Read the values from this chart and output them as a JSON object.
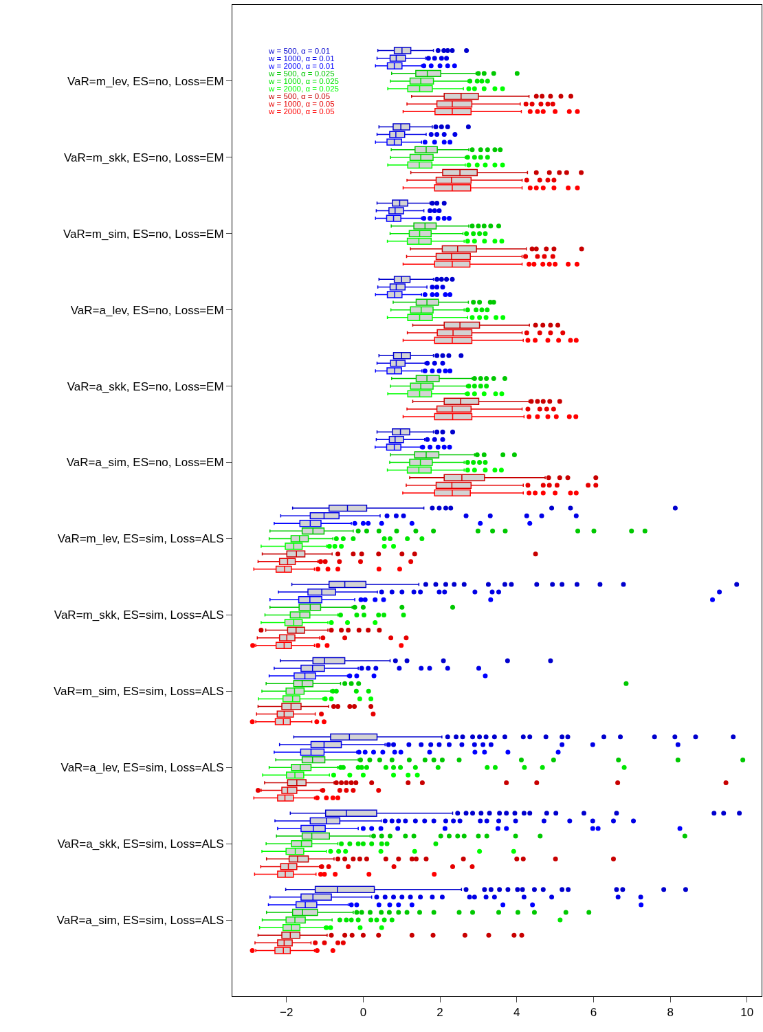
{
  "chart_data": {
    "type": "box",
    "orientation": "horizontal",
    "legend": "top left",
    "marker": "circle",
    "categories": [
      "VaR=m_lev, ES=no, Loss=EM",
      "VaR=m_skk, ES=no, Loss=EM",
      "VaR=m_sim, ES=no, Loss=EM",
      "VaR=a_lev, ES=no, Loss=EM",
      "VaR=a_skk, ES=no, Loss=EM",
      "VaR=a_sim, ES=no, Loss=EM",
      "VaR=m_lev, ES=sim, Loss=ALS",
      "VaR=m_skk, ES=sim, Loss=ALS",
      "VaR=m_sim, ES=sim, Loss=ALS",
      "VaR=a_lev, ES=sim, Loss=ALS",
      "VaR=a_skk, ES=sim, Loss=ALS",
      "VaR=a_sim, ES=sim, Loss=ALS"
    ],
    "xlim": [
      -3.41,
      10.38
    ],
    "xticks": [
      {
        "value": -2,
        "label": "−2"
      },
      0,
      2,
      4,
      6,
      8,
      10
    ],
    "series": [
      {
        "name": "w = 500, α = 0.01",
        "color": "#0000cd",
        "boxes": [
          {
            "low": 0.38,
            "q1": 0.81,
            "median": 1.01,
            "q3": 1.24,
            "high": 1.83,
            "outliers": [
              1.95,
              2.1,
              2.2,
              2.32,
              2.69
            ]
          },
          {
            "low": 0.41,
            "q1": 0.78,
            "median": 0.98,
            "q3": 1.21,
            "high": 1.8,
            "outliers": [
              1.89,
              2.04,
              2.2,
              2.74
            ]
          },
          {
            "low": 0.36,
            "q1": 0.76,
            "median": 0.95,
            "q3": 1.16,
            "high": 1.74,
            "outliers": [
              1.8,
              1.92,
              2.11
            ]
          },
          {
            "low": 0.41,
            "q1": 0.81,
            "median": 1.0,
            "q3": 1.22,
            "high": 1.83,
            "outliers": [
              1.92,
              2.04,
              2.17,
              2.32
            ]
          },
          {
            "low": 0.41,
            "q1": 0.79,
            "median": 1.0,
            "q3": 1.23,
            "high": 1.83,
            "outliers": [
              1.92,
              2.07,
              2.23,
              2.55
            ]
          },
          {
            "low": 0.36,
            "q1": 0.76,
            "median": 0.97,
            "q3": 1.21,
            "high": 1.83,
            "outliers": [
              1.92,
              2.07,
              2.33
            ]
          },
          {
            "low": -1.84,
            "q1": -0.89,
            "median": -0.41,
            "q3": 0.09,
            "high": 1.58,
            "outliers": [
              1.8,
              1.98,
              2.15,
              2.28,
              4.91,
              5.4,
              8.13
            ]
          },
          {
            "low": -1.86,
            "q1": -0.89,
            "median": -0.48,
            "q3": 0.07,
            "high": 1.45,
            "outliers": [
              1.63,
              1.89,
              2.15,
              2.37,
              2.63,
              3.26,
              3.69,
              3.86,
              4.52,
              4.93,
              5.18,
              5.57,
              6.17,
              6.78,
              9.73
            ]
          },
          {
            "low": -2.16,
            "q1": -1.31,
            "median": -1.01,
            "q3": -0.48,
            "high": 0.7,
            "outliers": [
              0.84,
              1.14,
              2.09,
              3.76,
              4.88
            ]
          },
          {
            "low": -1.81,
            "q1": -0.85,
            "median": -0.36,
            "q3": 0.36,
            "high": 2.05,
            "outliers": [
              2.2,
              2.42,
              2.59,
              2.85,
              3.03,
              3.2,
              3.42,
              3.69,
              4.17,
              4.34,
              4.76,
              5.18,
              5.33,
              6.27,
              6.7,
              7.59,
              8.12,
              8.66,
              9.64
            ]
          },
          {
            "low": -1.9,
            "q1": -0.98,
            "median": -0.44,
            "q3": 0.35,
            "high": 2.33,
            "outliers": [
              2.46,
              2.68,
              2.85,
              3.07,
              3.29,
              3.55,
              3.73,
              3.95,
              4.19,
              4.34,
              4.78,
              5.02,
              5.75,
              6.6,
              9.14,
              9.39,
              9.8
            ]
          },
          {
            "low": -2.02,
            "q1": -1.25,
            "median": -0.67,
            "q3": 0.29,
            "high": 2.56,
            "outliers": [
              2.68,
              3.16,
              3.33,
              3.55,
              3.77,
              4.02,
              4.15,
              4.46,
              4.69,
              5.18,
              5.34,
              6.6,
              6.76,
              7.83,
              8.4
            ]
          }
        ]
      },
      {
        "name": "w = 1000, α = 0.01",
        "color": "#0000e6",
        "boxes": [
          {
            "low": 0.36,
            "q1": 0.7,
            "median": 0.86,
            "q3": 1.1,
            "high": 1.62,
            "outliers": [
              1.7,
              1.86,
              2.04,
              2.17
            ]
          },
          {
            "low": 0.36,
            "q1": 0.69,
            "median": 0.85,
            "q3": 1.08,
            "high": 1.64,
            "outliers": [
              1.77,
              1.92,
              2.11,
              2.39
            ]
          },
          {
            "low": 0.34,
            "q1": 0.67,
            "median": 0.83,
            "q3": 1.05,
            "high": 1.58,
            "outliers": [
              1.74,
              1.86,
              1.98
            ]
          },
          {
            "low": 0.38,
            "q1": 0.7,
            "median": 0.86,
            "q3": 1.09,
            "high": 1.66,
            "outliers": [
              1.8,
              1.92,
              2.07
            ]
          },
          {
            "low": 0.36,
            "q1": 0.71,
            "median": 0.86,
            "q3": 1.09,
            "high": 1.61,
            "outliers": [
              1.67,
              1.86,
              2.07
            ]
          },
          {
            "low": 0.34,
            "q1": 0.68,
            "median": 0.83,
            "q3": 1.05,
            "high": 1.6,
            "outliers": [
              1.67,
              1.86,
              2.07
            ]
          },
          {
            "low": -2.15,
            "q1": -1.38,
            "median": -1.02,
            "q3": -0.63,
            "high": 0.44,
            "outliers": [
              0.62,
              0.86,
              1.05,
              2.68,
              3.31,
              4.26,
              4.65,
              5.55
            ]
          },
          {
            "low": -2.21,
            "q1": -1.44,
            "median": -1.08,
            "q3": -0.72,
            "high": 0.37,
            "outliers": [
              0.48,
              0.75,
              1.01,
              1.32,
              1.49,
              1.98,
              2.12,
              2.91,
              3.36,
              3.53,
              9.28
            ]
          },
          {
            "low": -2.32,
            "q1": -1.62,
            "median": -1.32,
            "q3": -1.01,
            "high": -0.13,
            "outliers": [
              -0.04,
              0.13,
              0.33,
              0.94,
              1.51,
              1.73,
              2.2,
              3.01
            ]
          },
          {
            "low": -2.18,
            "q1": -1.36,
            "median": -1.02,
            "q3": -0.57,
            "high": 0.57,
            "outliers": [
              0.66,
              0.79,
              1.19,
              1.51,
              1.76,
              1.98,
              2.24,
              2.57,
              2.9,
              3.12,
              3.33,
              5.18,
              5.98,
              8.2
            ]
          },
          {
            "low": -2.3,
            "q1": -1.38,
            "median": -0.96,
            "q3": -0.61,
            "high": 0.47,
            "outliers": [
              0.57,
              0.75,
              0.92,
              1.1,
              1.36,
              1.6,
              1.84,
              2.15,
              2.35,
              2.52,
              3.05,
              3.22,
              3.53,
              3.97,
              4.71,
              5.38,
              5.98,
              6.52,
              7.04
            ]
          },
          {
            "low": -2.43,
            "q1": -1.62,
            "median": -1.31,
            "q3": -0.83,
            "high": 0.22,
            "outliers": [
              0.35,
              0.57,
              0.79,
              1.01,
              1.23,
              1.49,
              1.8,
              2.06,
              2.77,
              2.9,
              3.2,
              3.42,
              4.19,
              4.91,
              6.64,
              7.23
            ]
          }
        ]
      },
      {
        "name": "w = 2000, α = 0.01",
        "color": "#0000ff",
        "boxes": [
          {
            "low": 0.32,
            "q1": 0.63,
            "median": 0.81,
            "q3": 1.01,
            "high": 1.52,
            "outliers": [
              1.58,
              1.77,
              2.0,
              2.2,
              2.38
            ]
          },
          {
            "low": 0.32,
            "q1": 0.62,
            "median": 0.81,
            "q3": 1.0,
            "high": 1.52,
            "outliers": [
              1.61,
              1.86,
              2.11,
              2.26
            ]
          },
          {
            "low": 0.32,
            "q1": 0.61,
            "median": 0.79,
            "q3": 0.98,
            "high": 1.52,
            "outliers": [
              1.58,
              1.74,
              1.95,
              2.11,
              2.24
            ]
          },
          {
            "low": 0.32,
            "q1": 0.63,
            "median": 0.82,
            "q3": 1.01,
            "high": 1.52,
            "outliers": [
              1.61,
              1.8,
              1.92,
              2.14,
              2.26
            ]
          },
          {
            "low": 0.32,
            "q1": 0.62,
            "median": 0.82,
            "q3": 1.0,
            "high": 1.53,
            "outliers": [
              1.61,
              1.8,
              1.98,
              2.14,
              2.26
            ]
          },
          {
            "low": 0.31,
            "q1": 0.61,
            "median": 0.81,
            "q3": 0.98,
            "high": 1.49,
            "outliers": [
              1.55,
              1.74,
              1.95,
              2.11,
              2.25
            ]
          },
          {
            "low": -2.32,
            "q1": -1.65,
            "median": -1.38,
            "q3": -1.1,
            "high": -0.31,
            "outliers": [
              -0.22,
              0.0,
              0.13,
              0.48,
              1.27,
              3.05,
              4.34
            ]
          },
          {
            "low": -2.43,
            "q1": -1.68,
            "median": -1.39,
            "q3": -1.08,
            "high": -0.22,
            "outliers": [
              -0.06,
              0.05,
              0.31,
              0.53,
              3.32,
              9.1
            ]
          },
          {
            "low": -2.45,
            "q1": -1.8,
            "median": -1.52,
            "q3": -1.24,
            "high": -0.41,
            "outliers": [
              -0.35,
              -0.17,
              0.28,
              3.18
            ]
          },
          {
            "low": -2.32,
            "q1": -1.63,
            "median": -1.36,
            "q3": -1.02,
            "high": -0.17,
            "outliers": [
              -0.11,
              0.05,
              0.27,
              0.51,
              0.82,
              0.98,
              1.73,
              2.91,
              3.16,
              3.77,
              5.08
            ]
          },
          {
            "low": -2.23,
            "q1": -1.62,
            "median": -1.3,
            "q3": -0.99,
            "high": -0.13,
            "outliers": [
              0.0,
              0.22,
              0.46,
              0.9,
              2.13,
              3.51,
              3.73,
              5.98,
              6.12,
              8.25
            ]
          },
          {
            "low": -2.47,
            "q1": -1.75,
            "median": -1.51,
            "q3": -1.21,
            "high": -0.39,
            "outliers": [
              -0.31,
              -0.17,
              0.41,
              0.69,
              0.92,
              1.27,
              3.64,
              4.41,
              7.24
            ]
          }
        ]
      },
      {
        "name": "w = 500, α = 0.025",
        "color": "#00c800",
        "boxes": [
          {
            "low": 0.74,
            "q1": 1.37,
            "median": 1.67,
            "q3": 2.02,
            "high": 2.94,
            "outliers": [
              3.0,
              3.15,
              3.4,
              4.01
            ]
          },
          {
            "low": 0.73,
            "q1": 1.35,
            "median": 1.64,
            "q3": 1.93,
            "high": 2.75,
            "outliers": [
              2.84,
              3.06,
              3.24,
              3.43,
              3.57
            ]
          },
          {
            "low": 0.73,
            "q1": 1.32,
            "median": 1.61,
            "q3": 1.9,
            "high": 2.75,
            "outliers": [
              2.84,
              3.0,
              3.15,
              3.32,
              3.53
            ]
          },
          {
            "low": 0.78,
            "q1": 1.38,
            "median": 1.66,
            "q3": 1.96,
            "high": 2.74,
            "outliers": [
              2.87,
              3.03,
              3.31,
              3.4
            ]
          },
          {
            "low": 0.74,
            "q1": 1.38,
            "median": 1.66,
            "q3": 1.98,
            "high": 2.84,
            "outliers": [
              2.9,
              3.06,
              3.21,
              3.4,
              3.69
            ]
          },
          {
            "low": 0.71,
            "q1": 1.34,
            "median": 1.64,
            "q3": 1.97,
            "high": 2.9,
            "outliers": [
              2.97,
              3.15,
              3.64,
              3.94
            ]
          },
          {
            "low": -2.43,
            "q1": -1.59,
            "median": -1.31,
            "q3": -1.02,
            "high": -0.26,
            "outliers": [
              -0.13,
              0.09,
              0.41,
              0.87,
              1.37,
              1.83,
              2.99,
              3.37,
              3.7,
              5.59,
              6.01,
              6.99,
              7.34
            ]
          },
          {
            "low": -2.43,
            "q1": -1.67,
            "median": -1.38,
            "q3": -1.11,
            "high": -0.29,
            "outliers": [
              -0.22,
              0.0,
              1.01,
              2.33
            ]
          },
          {
            "low": -2.53,
            "q1": -1.81,
            "median": -1.59,
            "q3": -1.31,
            "high": -0.59,
            "outliers": [
              -0.48,
              -0.31,
              -0.12,
              6.85
            ]
          },
          {
            "low": -2.28,
            "q1": -1.59,
            "median": -1.32,
            "q3": -1.0,
            "high": -0.13,
            "outliers": [
              -0.07,
              0.17,
              0.43,
              0.75,
              1.2,
              1.61,
              1.84,
              2.06,
              2.5,
              4.12,
              4.96,
              6.65,
              8.2,
              9.89
            ]
          },
          {
            "low": -2.26,
            "q1": -1.59,
            "median": -1.34,
            "q3": -0.88,
            "high": 0.18,
            "outliers": [
              0.27,
              0.48,
              0.7,
              1.1,
              1.32,
              2.02,
              2.24,
              2.46,
              2.63,
              3.0,
              3.22,
              3.97,
              4.61,
              8.38
            ]
          },
          {
            "low": -2.52,
            "q1": -1.84,
            "median": -1.58,
            "q3": -1.19,
            "high": -0.26,
            "outliers": [
              -0.17,
              -0.04,
              0.18,
              0.47,
              0.68,
              0.92,
              1.14,
              1.47,
              1.84,
              2.5,
              2.85,
              3.53,
              4.03,
              4.46,
              5.28,
              5.88
            ]
          }
        ]
      },
      {
        "name": "w = 1000, α = 0.025",
        "color": "#00e600",
        "boxes": [
          {
            "low": 0.71,
            "q1": 1.22,
            "median": 1.5,
            "q3": 1.83,
            "high": 2.73,
            "outliers": [
              2.78,
              2.97,
              3.09,
              3.24
            ]
          },
          {
            "low": 0.71,
            "q1": 1.22,
            "median": 1.5,
            "q3": 1.82,
            "high": 2.66,
            "outliers": [
              2.72,
              2.9,
              3.06,
              3.24
            ]
          },
          {
            "low": 0.7,
            "q1": 1.2,
            "median": 1.47,
            "q3": 1.77,
            "high": 2.6,
            "outliers": [
              2.69,
              2.87,
              3.03,
              3.18
            ]
          },
          {
            "low": 0.72,
            "q1": 1.23,
            "median": 1.51,
            "q3": 1.82,
            "high": 2.63,
            "outliers": [
              2.72,
              2.94,
              3.09,
              3.23
            ]
          },
          {
            "low": 0.71,
            "q1": 1.23,
            "median": 1.5,
            "q3": 1.82,
            "high": 2.69,
            "outliers": [
              2.75,
              2.9,
              3.06,
              3.21
            ]
          },
          {
            "low": 0.69,
            "q1": 1.21,
            "median": 1.49,
            "q3": 1.8,
            "high": 2.63,
            "outliers": [
              2.72,
              2.87,
              3.03,
              3.18
            ]
          },
          {
            "low": -2.45,
            "q1": -1.88,
            "median": -1.66,
            "q3": -1.43,
            "high": -0.79,
            "outliers": [
              -0.7,
              -0.52,
              -0.26,
              0.55,
              0.7,
              1.15,
              1.53
            ]
          },
          {
            "low": -2.56,
            "q1": -1.9,
            "median": -1.65,
            "q3": -1.39,
            "high": -0.66,
            "outliers": [
              -0.59,
              -0.17,
              0.02,
              0.4,
              0.54,
              1.05
            ]
          },
          {
            "low": -2.64,
            "q1": -2.01,
            "median": -1.79,
            "q3": -1.54,
            "high": -0.85,
            "outliers": [
              -0.79,
              -0.7,
              -0.18,
              0.14
            ]
          },
          {
            "low": -2.45,
            "q1": -1.87,
            "median": -1.64,
            "q3": -1.36,
            "high": -0.67,
            "outliers": [
              -0.59,
              -0.52,
              -0.13,
              -0.04,
              0.09,
              0.59,
              0.79,
              0.97,
              1.36,
              1.95,
              3.23,
              3.44,
              4.2,
              4.67,
              6.8
            ]
          },
          {
            "low": -2.53,
            "q1": -1.87,
            "median": -1.61,
            "q3": -1.34,
            "high": -0.66,
            "outliers": [
              -0.57,
              -0.35,
              -0.13,
              0.0,
              0.22,
              0.48,
              0.62,
              1.89
            ]
          },
          {
            "low": -2.63,
            "q1": -2.01,
            "median": -1.78,
            "q3": -1.51,
            "high": -0.81,
            "outliers": [
              -0.61,
              -0.44,
              -0.31,
              -0.13,
              0.2,
              0.35,
              0.55,
              0.75,
              5.13
            ]
          }
        ]
      },
      {
        "name": "w = 2000, α = 0.025",
        "color": "#00ff00",
        "boxes": [
          {
            "low": 0.64,
            "q1": 1.16,
            "median": 1.47,
            "q3": 1.8,
            "high": 2.61,
            "outliers": [
              2.75,
              2.9,
              3.15,
              3.43,
              3.63
            ]
          },
          {
            "low": 0.64,
            "q1": 1.16,
            "median": 1.46,
            "q3": 1.79,
            "high": 2.66,
            "outliers": [
              2.75,
              2.97,
              3.18,
              3.43,
              3.63
            ]
          },
          {
            "low": 0.63,
            "q1": 1.15,
            "median": 1.45,
            "q3": 1.77,
            "high": 2.63,
            "outliers": [
              2.72,
              2.9,
              3.16,
              3.43,
              3.61
            ]
          },
          {
            "low": 0.63,
            "q1": 1.16,
            "median": 1.47,
            "q3": 1.8,
            "high": 2.72,
            "outliers": [
              2.84,
              3.03,
              3.2,
              3.46,
              3.64
            ]
          },
          {
            "low": 0.64,
            "q1": 1.16,
            "median": 1.47,
            "q3": 1.78,
            "high": 2.66,
            "outliers": [
              2.72,
              2.9,
              3.15,
              3.45,
              3.61
            ]
          },
          {
            "low": 0.63,
            "q1": 1.15,
            "median": 1.45,
            "q3": 1.77,
            "high": 2.63,
            "outliers": [
              2.72,
              2.9,
              3.18,
              3.43,
              3.6
            ]
          },
          {
            "low": -2.66,
            "q1": -2.03,
            "median": -1.81,
            "q3": -1.59,
            "high": -0.96,
            "outliers": [
              -0.88,
              -0.74,
              -0.57,
              0.55,
              0.79
            ]
          },
          {
            "low": -2.66,
            "q1": -2.04,
            "median": -1.81,
            "q3": -1.59,
            "high": -0.92,
            "outliers": [
              -0.83,
              -0.41,
              0.31
            ]
          },
          {
            "low": -2.73,
            "q1": -2.09,
            "median": -1.84,
            "q3": -1.65,
            "high": -1.05,
            "outliers": [
              -0.99,
              -0.83,
              -0.09,
              0.2
            ]
          },
          {
            "low": -2.62,
            "q1": -2.0,
            "median": -1.78,
            "q3": -1.55,
            "high": -0.88,
            "outliers": [
              -0.77,
              -0.35,
              0.0,
              0.79,
              1.17,
              1.41
            ]
          },
          {
            "low": -2.64,
            "q1": -2.01,
            "median": -1.77,
            "q3": -1.55,
            "high": -0.96,
            "outliers": [
              -0.85,
              -0.64,
              -0.46,
              0.46,
              1.34,
              3.03,
              3.92
            ]
          },
          {
            "low": -2.7,
            "q1": -2.09,
            "median": -1.87,
            "q3": -1.65,
            "high": -1.01,
            "outliers": [
              -0.96,
              -0.85,
              -0.08,
              0.48
            ]
          }
        ]
      },
      {
        "name": "w = 500, α = 0.05",
        "color": "#c80000",
        "boxes": [
          {
            "low": 1.26,
            "q1": 2.11,
            "median": 2.55,
            "q3": 3.0,
            "high": 4.32,
            "outliers": [
              4.51,
              4.66,
              4.88,
              5.15,
              5.41
            ]
          },
          {
            "low": 1.24,
            "q1": 2.07,
            "median": 2.52,
            "q3": 2.97,
            "high": 4.28,
            "outliers": [
              4.51,
              4.85,
              5.11,
              5.3,
              5.68
            ]
          },
          {
            "low": 1.23,
            "q1": 2.06,
            "median": 2.46,
            "q3": 2.95,
            "high": 4.25,
            "outliers": [
              4.4,
              4.51,
              4.77,
              4.97,
              5.69
            ]
          },
          {
            "low": 1.29,
            "q1": 2.11,
            "median": 2.52,
            "q3": 3.03,
            "high": 4.33,
            "outliers": [
              4.49,
              4.68,
              4.88,
              5.07
            ]
          },
          {
            "low": 1.29,
            "q1": 2.11,
            "median": 2.54,
            "q3": 3.01,
            "high": 4.32,
            "outliers": [
              4.38,
              4.54,
              4.69,
              4.86,
              5.12
            ]
          },
          {
            "low": 1.21,
            "q1": 2.11,
            "median": 2.57,
            "q3": 3.16,
            "high": 4.74,
            "outliers": [
              4.83,
              5.12,
              5.33,
              6.06
            ]
          },
          {
            "low": -2.63,
            "q1": -1.99,
            "median": -1.74,
            "q3": -1.52,
            "high": -0.81,
            "outliers": [
              -0.66,
              -0.26,
              -0.04,
              0.4,
              1.01,
              1.34,
              4.49
            ]
          },
          {
            "low": -2.54,
            "q1": -1.97,
            "median": -1.75,
            "q3": -1.53,
            "high": -0.92,
            "outliers": [
              -2.66,
              -0.83,
              -0.57,
              -0.39,
              -0.11,
              0.13,
              0.42
            ]
          },
          {
            "low": -2.74,
            "q1": -2.12,
            "median": -1.88,
            "q3": -1.62,
            "high": -0.9,
            "outliers": [
              -0.77,
              -0.66,
              -0.35,
              -0.23,
              0.2
            ]
          },
          {
            "low": -2.57,
            "q1": -1.97,
            "median": -1.73,
            "q3": -1.49,
            "high": -0.76,
            "outliers": [
              -0.7,
              -0.57,
              -0.44,
              -0.31,
              -0.19,
              0.22,
              1.17,
              1.54,
              3.73,
              4.52,
              6.63,
              9.45
            ]
          },
          {
            "low": -2.52,
            "q1": -1.93,
            "median": -1.71,
            "q3": -1.43,
            "high": -0.76,
            "outliers": [
              -0.66,
              -0.48,
              -0.26,
              -0.09,
              0.09,
              0.59,
              0.92,
              1.27,
              1.38,
              1.64,
              2.61,
              4.0,
              4.17,
              5.01,
              6.52
            ]
          },
          {
            "low": -2.74,
            "q1": -2.12,
            "median": -1.9,
            "q3": -1.65,
            "high": -0.94,
            "outliers": [
              -0.83,
              -0.48,
              -0.29,
              0.0,
              0.4,
              1.27,
              1.82,
              2.65,
              3.27,
              3.93,
              4.13
            ]
          }
        ]
      },
      {
        "name": "w = 1000, α = 0.05",
        "color": "#e60000",
        "boxes": [
          {
            "low": 1.14,
            "q1": 1.92,
            "median": 2.32,
            "q3": 2.83,
            "high": 4.09,
            "outliers": [
              4.24,
              4.4,
              4.63,
              4.81,
              4.94
            ]
          },
          {
            "low": 1.14,
            "q1": 1.9,
            "median": 2.3,
            "q3": 2.81,
            "high": 4.14,
            "outliers": [
              4.26,
              4.6,
              4.81,
              4.97
            ]
          },
          {
            "low": 1.13,
            "q1": 1.9,
            "median": 2.3,
            "q3": 2.79,
            "high": 4.14,
            "outliers": [
              4.23,
              4.54,
              4.72,
              4.94
            ]
          },
          {
            "low": 1.15,
            "q1": 1.93,
            "median": 2.34,
            "q3": 2.83,
            "high": 4.14,
            "outliers": [
              4.26,
              4.6,
              4.88,
              5.2
            ]
          },
          {
            "low": 1.14,
            "q1": 1.92,
            "median": 2.32,
            "q3": 2.81,
            "high": 4.14,
            "outliers": [
              4.29,
              4.6,
              4.78,
              4.96
            ]
          },
          {
            "low": 1.12,
            "q1": 1.9,
            "median": 2.31,
            "q3": 2.81,
            "high": 4.17,
            "outliers": [
              4.29,
              4.69,
              4.85,
              5.05,
              5.86,
              6.06
            ]
          },
          {
            "low": -2.74,
            "q1": -2.18,
            "median": -1.97,
            "q3": -1.77,
            "high": -1.18,
            "outliers": [
              -1.11,
              -0.99,
              -0.62,
              -0.07,
              1.24
            ]
          },
          {
            "low": -2.76,
            "q1": -2.18,
            "median": -1.99,
            "q3": -1.78,
            "high": -1.14,
            "outliers": [
              -1.05,
              -0.48,
              0.72,
              1.12
            ]
          },
          {
            "low": -2.78,
            "q1": -2.24,
            "median": -2.06,
            "q3": -1.82,
            "high": -1.25,
            "outliers": [
              -1.09,
              0.26
            ]
          },
          {
            "low": -2.66,
            "q1": -2.12,
            "median": -1.97,
            "q3": -1.73,
            "high": -1.11,
            "outliers": [
              -2.74,
              -1.05,
              -0.61,
              -0.44,
              -0.26,
              0.4
            ]
          },
          {
            "low": -2.67,
            "q1": -2.15,
            "median": -1.95,
            "q3": -1.73,
            "high": -1.14,
            "outliers": [
              -1.08,
              -0.9,
              -0.39,
              0.8,
              2.33,
              2.84
            ]
          },
          {
            "low": -2.82,
            "q1": -2.23,
            "median": -2.06,
            "q3": -1.85,
            "high": -1.36,
            "outliers": [
              -1.25,
              -1.01,
              -0.66,
              -0.52
            ]
          }
        ]
      },
      {
        "name": "w = 2000, α = 0.05",
        "color": "#ff0000",
        "boxes": [
          {
            "low": 1.04,
            "q1": 1.87,
            "median": 2.32,
            "q3": 2.81,
            "high": 4.12,
            "outliers": [
              4.35,
              4.54,
              4.69,
              5.0,
              5.37,
              5.58
            ]
          },
          {
            "low": 1.04,
            "q1": 1.86,
            "median": 2.32,
            "q3": 2.8,
            "high": 4.14,
            "outliers": [
              4.35,
              4.51,
              4.69,
              4.97,
              5.34,
              5.58
            ]
          },
          {
            "low": 1.04,
            "q1": 1.86,
            "median": 2.32,
            "q3": 2.78,
            "high": 4.14,
            "outliers": [
              4.32,
              4.45,
              4.68,
              4.85,
              5.0,
              5.34,
              5.57
            ]
          },
          {
            "low": 1.04,
            "q1": 1.86,
            "median": 2.32,
            "q3": 2.83,
            "high": 4.17,
            "outliers": [
              4.29,
              4.48,
              4.81,
              5.09,
              5.4,
              5.55
            ]
          },
          {
            "low": 1.04,
            "q1": 1.86,
            "median": 2.33,
            "q3": 2.83,
            "high": 4.19,
            "outliers": [
              4.32,
              4.54,
              4.81,
              5.03,
              5.37,
              5.54
            ]
          },
          {
            "low": 1.03,
            "q1": 1.86,
            "median": 2.32,
            "q3": 2.79,
            "high": 4.17,
            "outliers": [
              4.32,
              4.48,
              4.69,
              5.0,
              5.4,
              5.55
            ]
          },
          {
            "low": -2.85,
            "q1": -2.27,
            "median": -2.05,
            "q3": -1.87,
            "high": -1.27,
            "outliers": [
              -1.18,
              -0.92,
              -0.66,
              0.41,
              0.95
            ]
          },
          {
            "low": -2.8,
            "q1": -2.27,
            "median": -2.06,
            "q3": -1.87,
            "high": -1.27,
            "outliers": [
              -2.88,
              -1.18,
              -0.94,
              0.99
            ]
          },
          {
            "low": -2.8,
            "q1": -2.29,
            "median": -2.08,
            "q3": -1.9,
            "high": -1.34,
            "outliers": [
              -2.89,
              -1.21,
              -1.02
            ]
          },
          {
            "low": -2.85,
            "q1": -2.23,
            "median": -2.04,
            "q3": -1.82,
            "high": -1.27,
            "outliers": [
              -1.2,
              -0.96,
              -0.79,
              -0.66
            ]
          },
          {
            "low": -2.83,
            "q1": -2.23,
            "median": -2.03,
            "q3": -1.82,
            "high": -1.23,
            "outliers": [
              -1.11,
              -1.01,
              -0.73,
              0.15,
              1.85
            ]
          },
          {
            "low": -2.8,
            "q1": -2.3,
            "median": -2.08,
            "q3": -1.9,
            "high": -1.27,
            "outliers": [
              -2.89,
              -1.2,
              -0.79
            ]
          }
        ]
      }
    ]
  }
}
